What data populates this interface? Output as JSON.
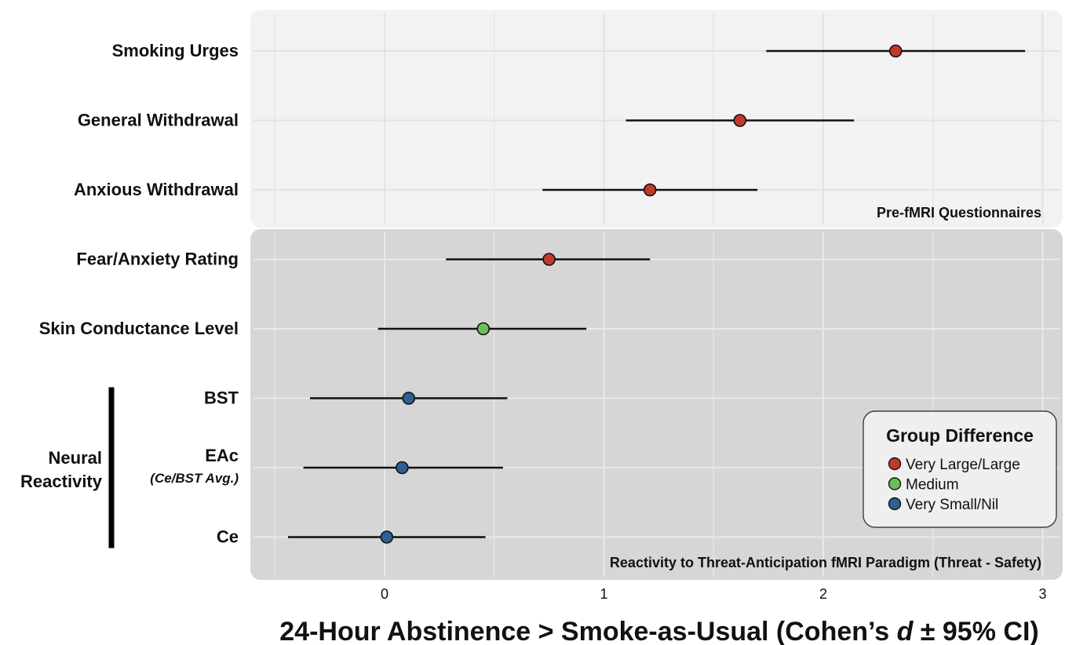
{
  "chart_data": {
    "type": "forest",
    "xlabel_parts": [
      "24-Hour Abstinence > Smoke-as-Usual (Cohen’s ",
      "d",
      " ± 95% CI)"
    ],
    "xlim": [
      -0.5,
      3.0
    ],
    "xticks": [
      0,
      1,
      2,
      3
    ],
    "grid": true,
    "rows": [
      {
        "label": "Smoking Urges",
        "sublabel": "",
        "d": 2.33,
        "ci": [
          1.74,
          2.92
        ],
        "category": "very_large"
      },
      {
        "label": "General Withdrawal",
        "sublabel": "",
        "d": 1.62,
        "ci": [
          1.1,
          2.14
        ],
        "category": "very_large"
      },
      {
        "label": "Anxious Withdrawal",
        "sublabel": "",
        "d": 1.21,
        "ci": [
          0.72,
          1.7
        ],
        "category": "very_large"
      },
      {
        "label": "Fear/Anxiety Rating",
        "sublabel": "",
        "d": 0.75,
        "ci": [
          0.28,
          1.21
        ],
        "category": "very_large"
      },
      {
        "label": "Skin Conductance Level",
        "sublabel": "",
        "d": 0.45,
        "ci": [
          -0.03,
          0.92
        ],
        "category": "medium"
      },
      {
        "label": "BST",
        "sublabel": "",
        "d": 0.11,
        "ci": [
          -0.34,
          0.56
        ],
        "category": "very_small"
      },
      {
        "label": "EAc",
        "sublabel": "(Ce/BST Avg.)",
        "d": 0.08,
        "ci": [
          -0.37,
          0.54
        ],
        "category": "very_small"
      },
      {
        "label": "Ce",
        "sublabel": "",
        "d": 0.01,
        "ci": [
          -0.44,
          0.46
        ],
        "category": "very_small"
      }
    ],
    "panels": [
      {
        "label": "Pre-fMRI Questionnaires",
        "rows": [
          0,
          2
        ]
      },
      {
        "label": "Reactivity to Threat-Anticipation fMRI Paradigm (Threat - Safety)",
        "rows": [
          3,
          7
        ]
      }
    ],
    "group_bracket": {
      "lines": [
        "Neural",
        "Reactivity"
      ],
      "rows": [
        5,
        7
      ]
    },
    "legend": {
      "title": "Group Difference",
      "position": "bottom-right",
      "entries": [
        {
          "key": "very_large",
          "label": "Very Large/Large",
          "color": "#c0392b"
        },
        {
          "key": "medium",
          "label": "Medium",
          "color": "#6bbf59"
        },
        {
          "key": "very_small",
          "label": "Very Small/Nil",
          "color": "#2e5f95"
        }
      ]
    }
  }
}
